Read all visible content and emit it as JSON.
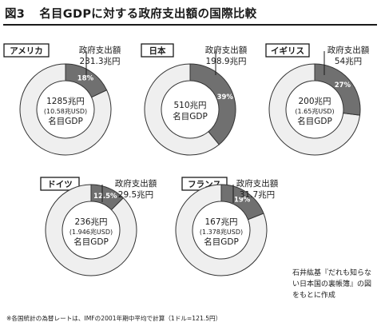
{
  "title": {
    "figure_number": "図3",
    "text": "名目GDPに対する政府支出額の国際比較"
  },
  "footnote": "※各国統計の為替レートは、IMFの2001年期中平均で計算（1ドル=121.5円）",
  "source": "石井紘基『だれも知らない日本国の裏帳簿』の図をもとに作成",
  "colors": {
    "share_fill": "#707070",
    "rest_fill": "#efefef",
    "ring_stroke": "#333333",
    "border": "#1a1a1a",
    "background": "#ffffff"
  },
  "spending_label": "政府支出額",
  "gdp_label": "名目GDP",
  "chart_data": [
    {
      "type": "donut",
      "country": "アメリカ",
      "spending": "231.3兆円",
      "gdp": "1285兆円",
      "gdp_usd": "(10.58兆USD)",
      "share_label": "18%",
      "share_percent": 18
    },
    {
      "type": "donut",
      "country": "日本",
      "spending": "198.9兆円",
      "gdp": "510兆円",
      "gdp_usd": "",
      "share_label": "39%",
      "share_percent": 39
    },
    {
      "type": "donut",
      "country": "イギリス",
      "spending": "54兆円",
      "gdp": "200兆円",
      "gdp_usd": "(1.65兆USD)",
      "share_label": "27%",
      "share_percent": 27
    },
    {
      "type": "donut",
      "country": "ドイツ",
      "spending": "29.5兆円",
      "gdp": "236兆円",
      "gdp_usd": "(1.946兆USD)",
      "share_label": "12.5%",
      "share_percent": 12.5
    },
    {
      "type": "donut",
      "country": "フランス",
      "spending": "31.7兆円",
      "gdp": "167兆円",
      "gdp_usd": "(1.378兆USD)",
      "share_label": "19%",
      "share_percent": 19
    }
  ]
}
